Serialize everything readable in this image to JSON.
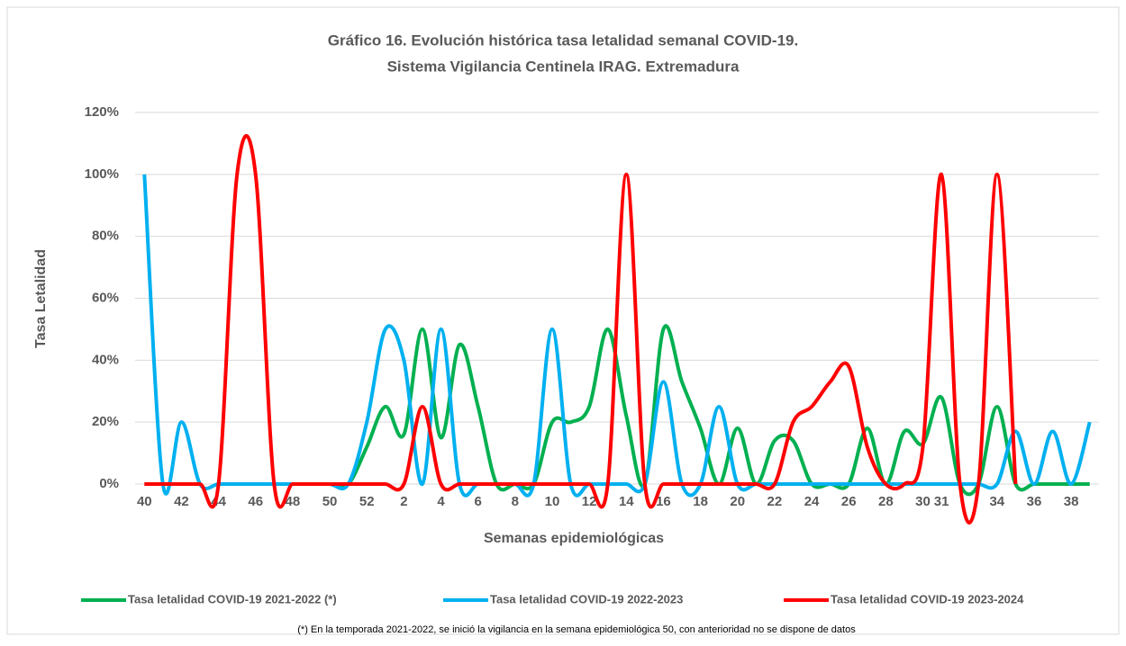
{
  "chart_data": {
    "type": "line",
    "title": [
      "Gráfico 16. Evolución histórica tasa letalidad semanal COVID-19.",
      "Sistema  Vigilancia Centinela IRAG. Extremadura"
    ],
    "xlabel": "Semanas epidemiológicas",
    "ylabel": "Tasa Letalidad",
    "note": "(*) En la temporada 2021-2022, se inició la vigilancia en la semana epidemiológica 50, con anterioridad no se dispone de datos",
    "categories": [
      "40",
      null,
      "42",
      null,
      "44",
      null,
      "46",
      null,
      "48",
      null,
      "50",
      null,
      "52",
      null,
      "2",
      null,
      "4",
      null,
      "6",
      null,
      "8",
      null,
      "10",
      null,
      "12",
      null,
      "14",
      null,
      "16",
      null,
      "18",
      null,
      "20",
      null,
      "22",
      null,
      "24",
      null,
      "26",
      null,
      "28",
      null,
      "30",
      "31",
      null,
      null,
      "34",
      null,
      "36",
      null,
      "38",
      null
    ],
    "ylim": [
      0,
      120
    ],
    "yticks": [
      {
        "value": 0,
        "label": "0%"
      },
      {
        "value": 20,
        "label": "20%"
      },
      {
        "value": 40,
        "label": "40%"
      },
      {
        "value": 60,
        "label": "60%"
      },
      {
        "value": 80,
        "label": "80%"
      },
      {
        "value": 100,
        "label": "100%"
      },
      {
        "value": 120,
        "label": "120%"
      }
    ],
    "grid": true,
    "legend": "bottom",
    "series": [
      {
        "name": "Tasa letalidad COVID-19 2021-2022 (*)",
        "color": "#00b050",
        "values": [
          null,
          null,
          null,
          null,
          null,
          null,
          null,
          null,
          null,
          null,
          0,
          0,
          12,
          25,
          16,
          50,
          15,
          45,
          25,
          0,
          0,
          0,
          20,
          20,
          25,
          50,
          22,
          0,
          50,
          33,
          18,
          0,
          18,
          0,
          14,
          14,
          0,
          0,
          0,
          18,
          0,
          17,
          13,
          28,
          0,
          0,
          25,
          0,
          0,
          0,
          0,
          0
        ]
      },
      {
        "name": "Tasa letalidad COVID-19 2022-2023",
        "color": "#00b0f0",
        "values": [
          100,
          0,
          20,
          0,
          0,
          0,
          0,
          0,
          0,
          0,
          0,
          0,
          20,
          50,
          40,
          0,
          50,
          0,
          0,
          0,
          0,
          0,
          50,
          0,
          0,
          0,
          0,
          0,
          33,
          0,
          0,
          25,
          0,
          0,
          0,
          0,
          0,
          0,
          0,
          0,
          0,
          0,
          0,
          0,
          0,
          0,
          0,
          17,
          0,
          17,
          0,
          20
        ]
      },
      {
        "name": "Tasa letalidad COVID-19 2023-2024",
        "color": "#ff0000",
        "values": [
          0,
          0,
          0,
          0,
          0,
          100,
          100,
          0,
          0,
          0,
          0,
          0,
          0,
          0,
          0,
          25,
          0,
          0,
          0,
          0,
          0,
          0,
          0,
          0,
          0,
          0,
          100,
          0,
          0,
          0,
          0,
          0,
          0,
          0,
          0,
          20,
          25,
          33,
          38,
          12,
          0,
          0,
          12,
          100,
          0,
          0,
          100,
          0,
          null,
          null,
          null,
          null
        ]
      }
    ]
  }
}
